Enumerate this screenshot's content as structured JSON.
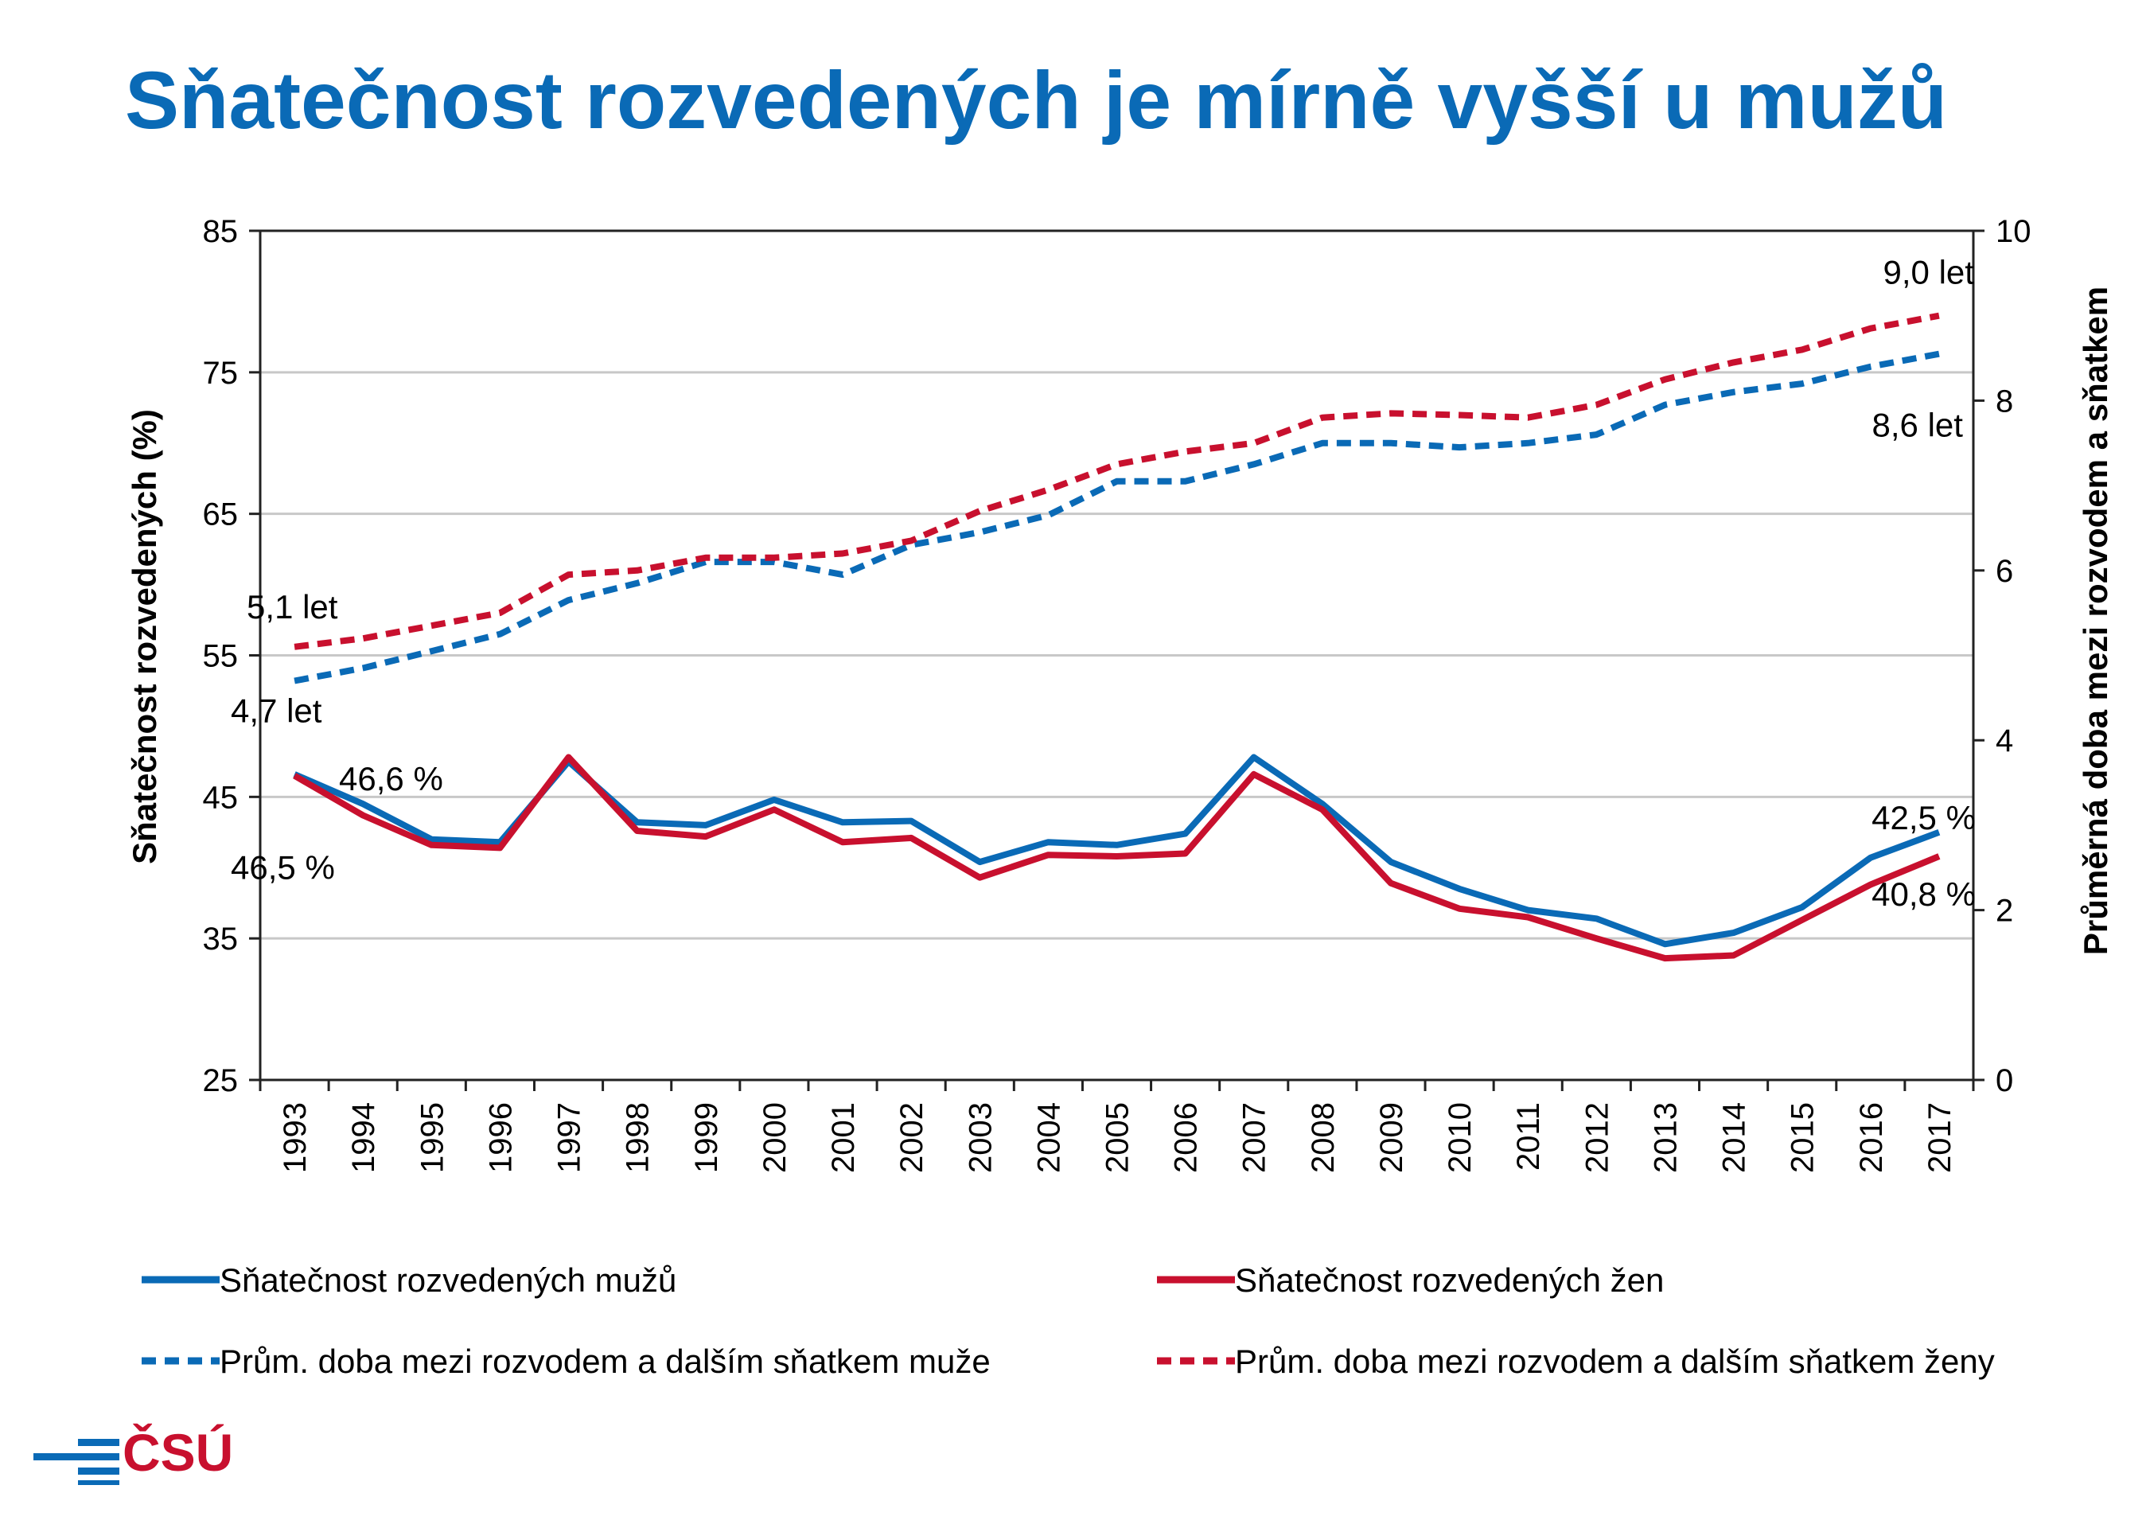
{
  "header": {
    "title": "Sňatečnost rozvedených je mírně vyšší u mužů"
  },
  "logo": {
    "text": "ČSÚ",
    "text_color": "#c8102e",
    "mark_color": "#0a6ab6"
  },
  "colors": {
    "title": "#0a6ab6",
    "men": "#0a6ab6",
    "women": "#c8102e",
    "grid": "#c8c8c8"
  },
  "chart_data": {
    "type": "line",
    "x": [
      1993,
      1994,
      1995,
      1996,
      1997,
      1998,
      1999,
      2000,
      2001,
      2002,
      2003,
      2004,
      2005,
      2006,
      2007,
      2008,
      2009,
      2010,
      2011,
      2012,
      2013,
      2014,
      2015,
      2016,
      2017
    ],
    "ylabel": "Sňatečnost rozvedených (%)",
    "y2label": "Průměrná doba mezi rozvodem a sňatkem",
    "ylim": [
      25,
      85
    ],
    "y2lim": [
      0,
      10
    ],
    "yticks": [
      25,
      35,
      45,
      55,
      65,
      75,
      85
    ],
    "y2ticks": [
      0,
      2,
      4,
      6,
      8,
      10
    ],
    "grid": true,
    "legend_position": "bottom",
    "series": [
      {
        "name": "Sňatečnost rozvedených mužů",
        "axis": "left",
        "style": "solid",
        "color": "#0a6ab6",
        "values": [
          46.6,
          44.5,
          42.0,
          41.8,
          47.5,
          43.2,
          43.0,
          44.8,
          43.2,
          43.3,
          40.4,
          41.8,
          41.6,
          42.4,
          47.8,
          44.5,
          40.4,
          38.5,
          37.0,
          36.4,
          34.6,
          35.4,
          37.2,
          40.7,
          42.5
        ]
      },
      {
        "name": "Sňatečnost rozvedených žen",
        "axis": "left",
        "style": "solid",
        "color": "#c8102e",
        "values": [
          46.5,
          43.7,
          41.6,
          41.4,
          47.8,
          42.6,
          42.2,
          44.1,
          41.8,
          42.1,
          39.3,
          40.9,
          40.8,
          41.0,
          46.6,
          44.1,
          38.9,
          37.1,
          36.5,
          35.0,
          33.6,
          33.8,
          36.3,
          38.8,
          40.8
        ]
      },
      {
        "name": "Prům. doba mezi rozvodem a dalším sňatkem muže",
        "axis": "right",
        "style": "dashed",
        "color": "#0a6ab6",
        "values": [
          4.7,
          4.85,
          5.05,
          5.25,
          5.65,
          5.85,
          6.1,
          6.1,
          5.95,
          6.3,
          6.45,
          6.65,
          7.05,
          7.05,
          7.25,
          7.5,
          7.5,
          7.45,
          7.5,
          7.6,
          7.95,
          8.1,
          8.2,
          8.4,
          8.55
        ]
      },
      {
        "name": "Prům. doba mezi rozvodem a dalším sňatkem ženy",
        "axis": "right",
        "style": "dashed",
        "color": "#c8102e",
        "values": [
          5.1,
          5.2,
          5.35,
          5.5,
          5.95,
          6.0,
          6.15,
          6.15,
          6.2,
          6.35,
          6.7,
          6.95,
          7.25,
          7.4,
          7.5,
          7.8,
          7.85,
          7.83,
          7.8,
          7.95,
          8.25,
          8.45,
          8.6,
          8.85,
          9.0
        ]
      }
    ],
    "annotations": {
      "women_time_start": "5,1 let",
      "men_time_start": "4,7 let",
      "men_rate_start": "46,6 %",
      "women_rate_start": "46,5 %",
      "women_time_end": "9,0 let",
      "men_time_end": "8,6 let",
      "men_rate_end": "42,5 %",
      "women_rate_end": "40,8 %"
    }
  }
}
